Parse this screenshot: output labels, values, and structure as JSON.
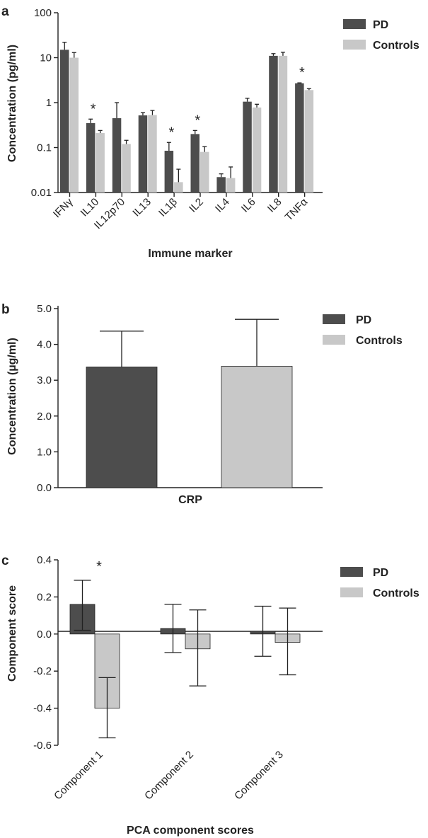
{
  "chart_data": [
    {
      "panel": "a",
      "type": "bar",
      "categories": [
        "IFNγ",
        "IL10",
        "IL12p70",
        "IL13",
        "IL1β",
        "IL2",
        "IL4",
        "IL6",
        "IL8",
        "TNFα"
      ],
      "series": [
        {
          "name": "PD",
          "color": "#4d4d4d",
          "values": [
            15,
            0.35,
            0.45,
            0.52,
            0.085,
            0.2,
            0.022,
            1.05,
            11,
            2.7
          ],
          "error_upper": [
            22,
            0.43,
            1.0,
            0.6,
            0.13,
            0.24,
            0.026,
            1.25,
            12.3,
            2.75
          ]
        },
        {
          "name": "Controls",
          "color": "#c8c8c8",
          "values": [
            10,
            0.21,
            0.12,
            0.53,
            0.017,
            0.08,
            0.021,
            0.78,
            11,
            1.9
          ],
          "error_upper": [
            13,
            0.24,
            0.145,
            0.67,
            0.033,
            0.105,
            0.037,
            0.92,
            13.2,
            2.05
          ]
        }
      ],
      "significant": [
        false,
        true,
        false,
        false,
        true,
        true,
        false,
        false,
        false,
        true
      ],
      "scale": "log",
      "ylim": [
        0.01,
        100
      ],
      "yticks": [
        "0.01",
        "0.1",
        "1",
        "10",
        "100"
      ],
      "xlabel": "Immune marker",
      "ylabel": "Concentration (pg/ml)",
      "legend": "top-right",
      "grid": false
    },
    {
      "panel": "b",
      "type": "bar",
      "categories": [
        "CRP"
      ],
      "series": [
        {
          "name": "PD",
          "color": "#4d4d4d",
          "values": [
            3.37
          ],
          "error_upper": [
            4.37
          ]
        },
        {
          "name": "Controls",
          "color": "#c8c8c8",
          "values": [
            3.39
          ],
          "error_upper": [
            4.7
          ]
        }
      ],
      "ylim": [
        0,
        5
      ],
      "yticks": [
        "0.0",
        "1.0",
        "2.0",
        "3.0",
        "4.0",
        "5.0"
      ],
      "xlabel": "CRP",
      "ylabel": "Concentration (µg/ml)",
      "legend": "top-right",
      "grid": false
    },
    {
      "panel": "c",
      "type": "bar",
      "categories": [
        "Component 1",
        "Component 2",
        "Component 3"
      ],
      "series": [
        {
          "name": "PD",
          "color": "#4d4d4d",
          "values": [
            0.16,
            0.03,
            0.015
          ],
          "error_upper": [
            0.29,
            0.16,
            0.15
          ],
          "error_lower": [
            0.02,
            -0.1,
            -0.12
          ]
        },
        {
          "name": "Controls",
          "color": "#c8c8c8",
          "values": [
            -0.4,
            -0.08,
            -0.045
          ],
          "error_upper": [
            -0.235,
            0.13,
            0.14
          ],
          "error_lower": [
            -0.56,
            -0.28,
            -0.22
          ]
        }
      ],
      "significant": [
        true,
        false,
        false
      ],
      "ylim": [
        -0.6,
        0.4
      ],
      "yticks": [
        "-0.6",
        "-0.4",
        "-0.2",
        "0.0",
        "0.2",
        "0.4"
      ],
      "xlabel": "PCA component scores",
      "ylabel": "Component score",
      "legend": "top-right",
      "grid": false
    }
  ]
}
